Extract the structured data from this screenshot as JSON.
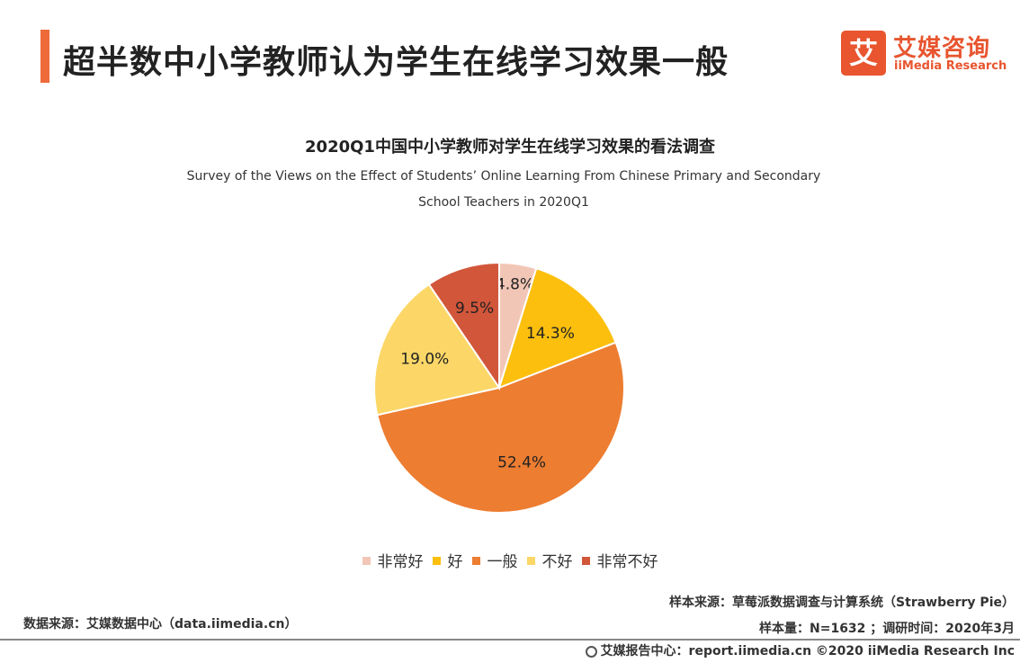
{
  "header": {
    "title": "超半数中小学教师认为学生在线学习效果一般"
  },
  "logo": {
    "mark": "艾",
    "name_cn": "艾媒咨询",
    "name_en": "iiMedia Research",
    "icon": "iimedia-logo-icon"
  },
  "colors": {
    "accent": "#ee6a3a",
    "brand": "#e8552f"
  },
  "chart_data": {
    "type": "pie",
    "title": "2020Q1中国中小学教师对学生在线学习效果的看法调查",
    "subtitle": "Survey of the Views on the Effect of Students’ Online Learning From Chinese Primary and Secondary School Teachers in 2020Q1",
    "categories": [
      "非常好",
      "好",
      "一般",
      "不好",
      "非常不好"
    ],
    "values": [
      4.8,
      14.3,
      52.4,
      19.0,
      9.5
    ],
    "labels": [
      "4.8%",
      "14.3%",
      "52.4%",
      "19.0%",
      "9.5%"
    ],
    "colors": [
      "#f2c6b6",
      "#fcbf0e",
      "#ed7d31",
      "#fcd767",
      "#d1563a"
    ],
    "legend": "bottom"
  },
  "footer": {
    "sample_source": "样本来源：草莓派数据调查与计算系统（Strawberry  Pie）",
    "sample_size": "样本量：N=1632 ；调研时间：2020年3月",
    "data_source": "数据来源：艾媒数据中心（data.iimedia.cn）",
    "report_center": "艾媒报告中心：report.iimedia.cn  ©2020  iiMedia Research  Inc",
    "globe_icon": "globe-icon"
  }
}
